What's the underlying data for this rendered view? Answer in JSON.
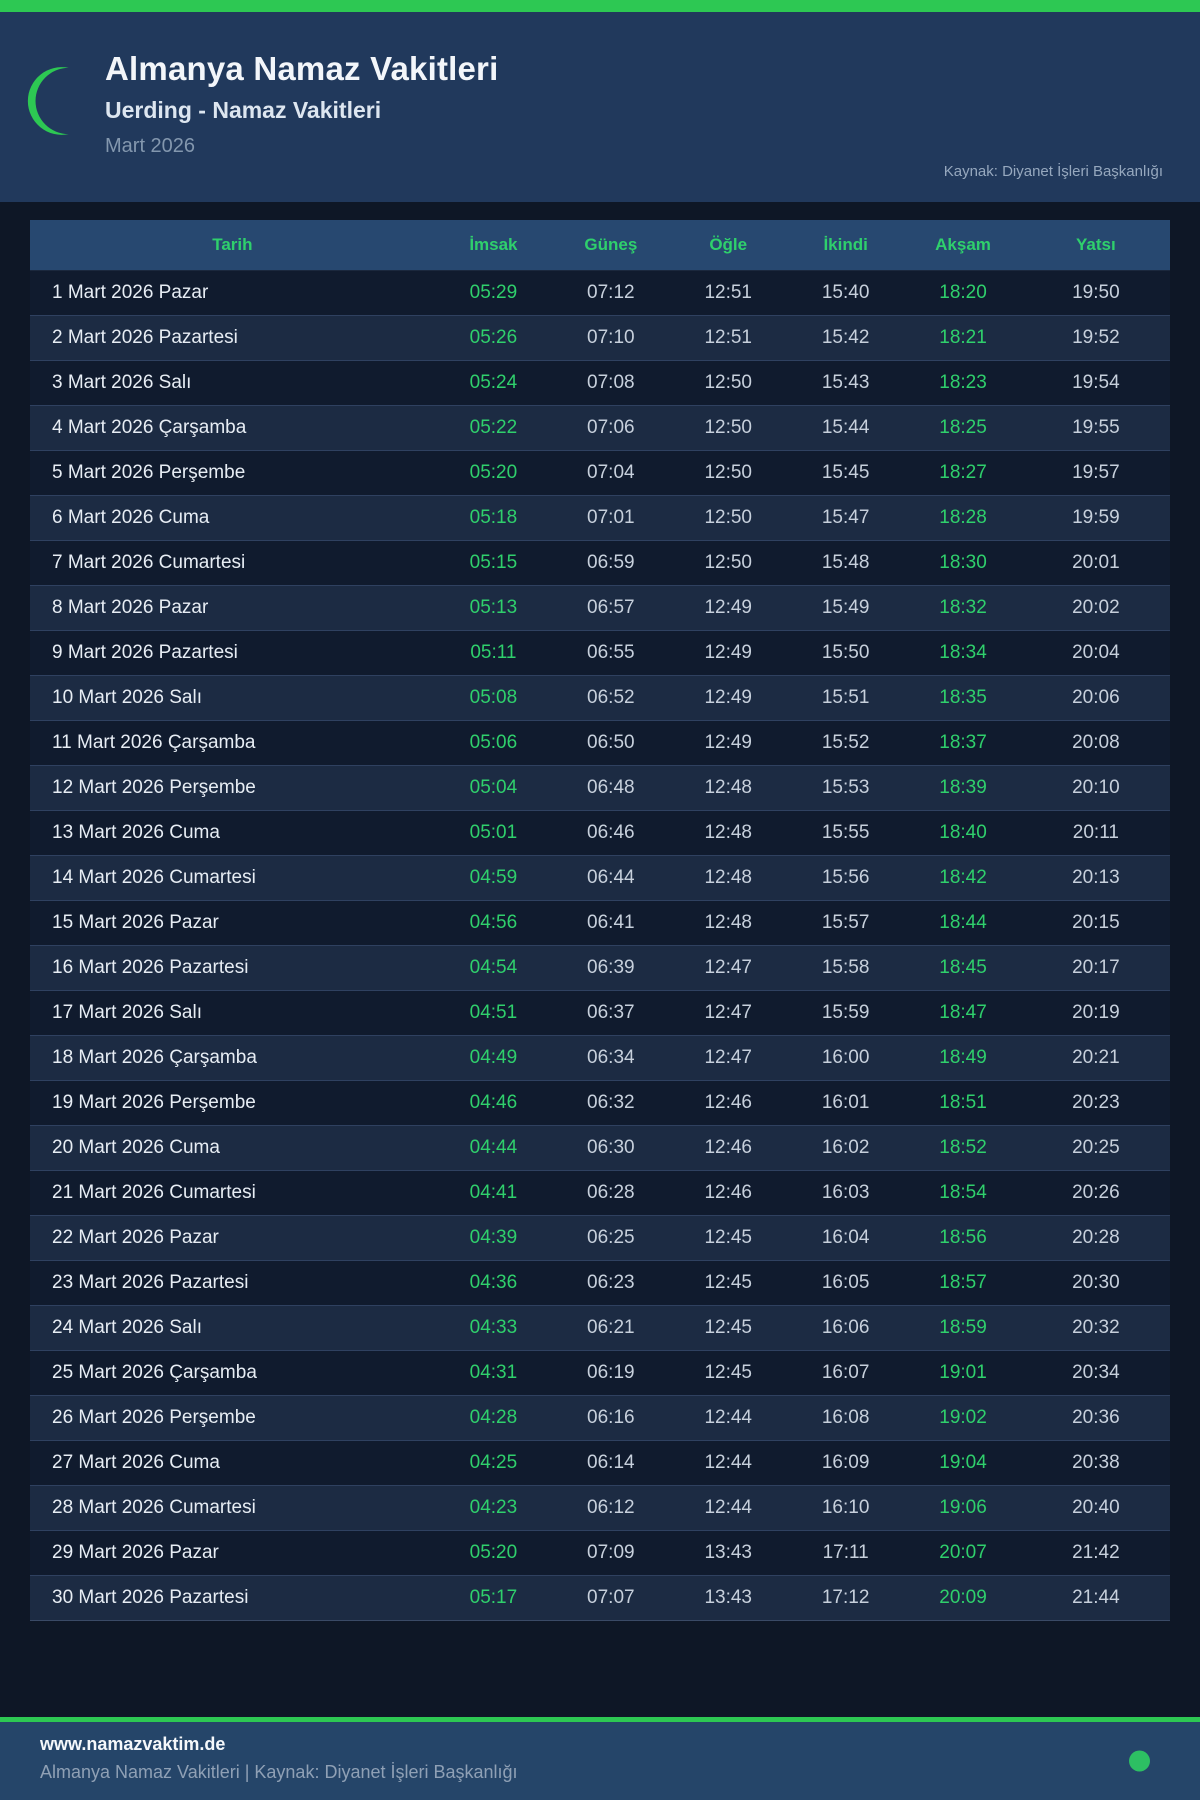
{
  "header": {
    "title": "Almanya Namaz Vakitleri",
    "subtitle": "Uerding - Namaz Vakitleri",
    "period": "Mart 2026",
    "source": "Kaynak: Diyanet İşleri Başkanlığı"
  },
  "table": {
    "columns": [
      "Tarih",
      "İmsak",
      "Güneş",
      "Öğle",
      "İkindi",
      "Akşam",
      "Yatsı"
    ],
    "green_time_columns": [
      1,
      5
    ],
    "rows": [
      [
        "1 Mart 2026 Pazar",
        "05:29",
        "07:12",
        "12:51",
        "15:40",
        "18:20",
        "19:50"
      ],
      [
        "2 Mart 2026 Pazartesi",
        "05:26",
        "07:10",
        "12:51",
        "15:42",
        "18:21",
        "19:52"
      ],
      [
        "3 Mart 2026 Salı",
        "05:24",
        "07:08",
        "12:50",
        "15:43",
        "18:23",
        "19:54"
      ],
      [
        "4 Mart 2026 Çarşamba",
        "05:22",
        "07:06",
        "12:50",
        "15:44",
        "18:25",
        "19:55"
      ],
      [
        "5 Mart 2026 Perşembe",
        "05:20",
        "07:04",
        "12:50",
        "15:45",
        "18:27",
        "19:57"
      ],
      [
        "6 Mart 2026 Cuma",
        "05:18",
        "07:01",
        "12:50",
        "15:47",
        "18:28",
        "19:59"
      ],
      [
        "7 Mart 2026 Cumartesi",
        "05:15",
        "06:59",
        "12:50",
        "15:48",
        "18:30",
        "20:01"
      ],
      [
        "8 Mart 2026 Pazar",
        "05:13",
        "06:57",
        "12:49",
        "15:49",
        "18:32",
        "20:02"
      ],
      [
        "9 Mart 2026 Pazartesi",
        "05:11",
        "06:55",
        "12:49",
        "15:50",
        "18:34",
        "20:04"
      ],
      [
        "10 Mart 2026 Salı",
        "05:08",
        "06:52",
        "12:49",
        "15:51",
        "18:35",
        "20:06"
      ],
      [
        "11 Mart 2026 Çarşamba",
        "05:06",
        "06:50",
        "12:49",
        "15:52",
        "18:37",
        "20:08"
      ],
      [
        "12 Mart 2026 Perşembe",
        "05:04",
        "06:48",
        "12:48",
        "15:53",
        "18:39",
        "20:10"
      ],
      [
        "13 Mart 2026 Cuma",
        "05:01",
        "06:46",
        "12:48",
        "15:55",
        "18:40",
        "20:11"
      ],
      [
        "14 Mart 2026 Cumartesi",
        "04:59",
        "06:44",
        "12:48",
        "15:56",
        "18:42",
        "20:13"
      ],
      [
        "15 Mart 2026 Pazar",
        "04:56",
        "06:41",
        "12:48",
        "15:57",
        "18:44",
        "20:15"
      ],
      [
        "16 Mart 2026 Pazartesi",
        "04:54",
        "06:39",
        "12:47",
        "15:58",
        "18:45",
        "20:17"
      ],
      [
        "17 Mart 2026 Salı",
        "04:51",
        "06:37",
        "12:47",
        "15:59",
        "18:47",
        "20:19"
      ],
      [
        "18 Mart 2026 Çarşamba",
        "04:49",
        "06:34",
        "12:47",
        "16:00",
        "18:49",
        "20:21"
      ],
      [
        "19 Mart 2026 Perşembe",
        "04:46",
        "06:32",
        "12:46",
        "16:01",
        "18:51",
        "20:23"
      ],
      [
        "20 Mart 2026 Cuma",
        "04:44",
        "06:30",
        "12:46",
        "16:02",
        "18:52",
        "20:25"
      ],
      [
        "21 Mart 2026 Cumartesi",
        "04:41",
        "06:28",
        "12:46",
        "16:03",
        "18:54",
        "20:26"
      ],
      [
        "22 Mart 2026 Pazar",
        "04:39",
        "06:25",
        "12:45",
        "16:04",
        "18:56",
        "20:28"
      ],
      [
        "23 Mart 2026 Pazartesi",
        "04:36",
        "06:23",
        "12:45",
        "16:05",
        "18:57",
        "20:30"
      ],
      [
        "24 Mart 2026 Salı",
        "04:33",
        "06:21",
        "12:45",
        "16:06",
        "18:59",
        "20:32"
      ],
      [
        "25 Mart 2026 Çarşamba",
        "04:31",
        "06:19",
        "12:45",
        "16:07",
        "19:01",
        "20:34"
      ],
      [
        "26 Mart 2026 Perşembe",
        "04:28",
        "06:16",
        "12:44",
        "16:08",
        "19:02",
        "20:36"
      ],
      [
        "27 Mart 2026 Cuma",
        "04:25",
        "06:14",
        "12:44",
        "16:09",
        "19:04",
        "20:38"
      ],
      [
        "28 Mart 2026 Cumartesi",
        "04:23",
        "06:12",
        "12:44",
        "16:10",
        "19:06",
        "20:40"
      ],
      [
        "29 Mart 2026 Pazar",
        "05:20",
        "07:09",
        "13:43",
        "17:11",
        "20:07",
        "21:42"
      ],
      [
        "30 Mart 2026 Pazartesi",
        "05:17",
        "07:07",
        "13:43",
        "17:12",
        "20:09",
        "21:44"
      ]
    ]
  },
  "footer": {
    "website": "www.namazvaktim.de",
    "line": "Almanya Namaz Vakitleri | Kaynak: Diyanet İşleri Başkanlığı"
  },
  "colors": {
    "accent_green": "#2dc853",
    "time_highlight_green": "#2fd06c",
    "page_bg": "#0e1726",
    "header_bg": "#21395c",
    "table_header_bg": "#274870",
    "row_odd_bg": "#101b2e",
    "row_even_bg": "#1c2b43",
    "footer_bg": "#254569"
  }
}
